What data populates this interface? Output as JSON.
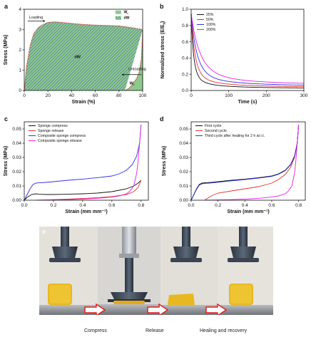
{
  "chart_data": [
    {
      "panel": "a",
      "type": "area",
      "xlabel": "Strain (%)",
      "ylabel": "Stress (MPa)",
      "xlim": [
        0,
        100
      ],
      "ylim": [
        0,
        4
      ],
      "xticks": [
        "0",
        "20",
        "40",
        "60",
        "80",
        "100"
      ],
      "yticks": [
        "0",
        "1",
        "2",
        "3",
        "4"
      ],
      "legend": [
        {
          "name": "W_r",
          "label": "W",
          "sub": "r",
          "color": "#8cc98c"
        },
        {
          "name": "dW",
          "label": "dW",
          "color": "#3a5ba8"
        }
      ],
      "annotations": {
        "loading": "Loading",
        "unloading": "Unloading",
        "dw_label": "dW",
        "wr_label": "W",
        "wr_sub": "r"
      },
      "series": [
        {
          "name": "loading",
          "x": [
            0,
            2,
            5,
            8,
            12,
            16,
            20,
            25,
            30,
            40,
            50,
            60,
            70,
            80,
            90,
            100
          ],
          "y": [
            0,
            1.2,
            2.2,
            2.8,
            3.1,
            3.25,
            3.35,
            3.38,
            3.36,
            3.3,
            3.25,
            3.22,
            3.2,
            3.18,
            3.1,
            3.0
          ]
        },
        {
          "name": "unloading",
          "x": [
            100,
            99,
            97,
            95,
            92,
            90,
            88,
            86,
            85
          ],
          "y": [
            3.0,
            1.6,
            0.9,
            0.6,
            0.35,
            0.2,
            0.1,
            0.03,
            0
          ]
        }
      ]
    },
    {
      "panel": "b",
      "type": "line",
      "xlabel": "Time (s)",
      "ylabel": "Normalized stress (E/E",
      "ylabel_sub": "0",
      "ylabel_end": ")",
      "xlim": [
        0,
        300
      ],
      "ylim": [
        0,
        1
      ],
      "xticks": [
        "0",
        "100",
        "200",
        "300"
      ],
      "yticks": [
        "0.0",
        "0.2",
        "0.4",
        "0.6",
        "0.8",
        "1.0"
      ],
      "series": [
        {
          "name": "25%",
          "color": "#111111",
          "a": 0.02,
          "b": 0.98,
          "tau": 7
        },
        {
          "name": "50%",
          "color": "#e0342c",
          "a": 0.03,
          "b": 0.97,
          "tau": 11
        },
        {
          "name": "100%",
          "color": "#2d2ee0",
          "a": 0.04,
          "b": 0.96,
          "tau": 17
        },
        {
          "name": "200%",
          "color": "#e020e0",
          "a": 0.05,
          "b": 0.95,
          "tau": 26
        }
      ]
    },
    {
      "panel": "c",
      "type": "line",
      "xlabel": "Strain (mm mm⁻¹)",
      "ylabel": "Stress (MPa)",
      "xlim": [
        0,
        0.85
      ],
      "ylim": [
        0,
        0.055
      ],
      "xticks": [
        "0.0",
        "0.2",
        "0.4",
        "0.6",
        "0.8"
      ],
      "yticks": [
        "0.00",
        "0.01",
        "0.02",
        "0.03",
        "0.04",
        "0.05"
      ],
      "series": [
        {
          "name": "Sponge compress",
          "color": "#111111",
          "x": [
            0,
            0.02,
            0.05,
            0.08,
            0.1,
            0.15,
            0.2,
            0.3,
            0.4,
            0.5,
            0.6,
            0.65,
            0.7,
            0.75,
            0.78,
            0.8
          ],
          "y": [
            0,
            0.002,
            0.004,
            0.0045,
            0.0042,
            0.004,
            0.004,
            0.0042,
            0.0045,
            0.005,
            0.006,
            0.007,
            0.008,
            0.01,
            0.012,
            0.014
          ]
        },
        {
          "name": "Sponge release",
          "color": "#e0342c",
          "x": [
            0.8,
            0.78,
            0.75,
            0.7,
            0.6,
            0.5,
            0.4,
            0.3,
            0.2,
            0.15,
            0.1,
            0.08
          ],
          "y": [
            0.014,
            0.009,
            0.006,
            0.004,
            0.0025,
            0.0018,
            0.0012,
            0.0008,
            0.0004,
            0.0002,
            0.0001,
            0
          ]
        },
        {
          "name": "Composite sponge compress",
          "color": "#2d2ee0",
          "x": [
            0,
            0.02,
            0.04,
            0.06,
            0.08,
            0.1,
            0.15,
            0.2,
            0.3,
            0.4,
            0.5,
            0.6,
            0.65,
            0.7,
            0.74,
            0.77,
            0.79,
            0.8
          ],
          "y": [
            0,
            0.004,
            0.008,
            0.011,
            0.012,
            0.0122,
            0.0125,
            0.013,
            0.014,
            0.0148,
            0.0158,
            0.017,
            0.0185,
            0.021,
            0.025,
            0.031,
            0.04,
            0.053
          ]
        },
        {
          "name": "Composite sponge release",
          "color": "#e020e0",
          "x": [
            0.8,
            0.79,
            0.78,
            0.77,
            0.75,
            0.72,
            0.7,
            0.65,
            0.6,
            0.5,
            0.4,
            0.3,
            0.2,
            0.15,
            0.1
          ],
          "y": [
            0.053,
            0.04,
            0.028,
            0.019,
            0.01,
            0.006,
            0.0045,
            0.003,
            0.0022,
            0.0013,
            0.0008,
            0.0004,
            0.0002,
            0.0001,
            0
          ]
        }
      ]
    },
    {
      "panel": "d",
      "type": "line",
      "xlabel": "Strain (mm mm⁻¹)",
      "ylabel": "Stress (MPa)",
      "xlim": [
        0,
        0.85
      ],
      "ylim": [
        0,
        0.055
      ],
      "xticks": [
        "0.0",
        "0.2",
        "0.4",
        "0.6",
        "0.8"
      ],
      "yticks": [
        "0.00",
        "0.01",
        "0.02",
        "0.03",
        "0.04",
        "0.05"
      ],
      "series": [
        {
          "name": "First cycle",
          "color": "#111111",
          "x": [
            0,
            0.02,
            0.04,
            0.06,
            0.08,
            0.1,
            0.15,
            0.2,
            0.3,
            0.4,
            0.5,
            0.6,
            0.65,
            0.7,
            0.74,
            0.77,
            0.79,
            0.8
          ],
          "y": [
            0,
            0.004,
            0.008,
            0.011,
            0.012,
            0.0122,
            0.0125,
            0.013,
            0.014,
            0.0148,
            0.0158,
            0.017,
            0.0185,
            0.021,
            0.025,
            0.031,
            0.04,
            0.053
          ]
        },
        {
          "name": "Second cycle",
          "color": "#e0342c",
          "x": [
            0.1,
            0.15,
            0.2,
            0.3,
            0.4,
            0.5,
            0.6,
            0.65,
            0.7,
            0.74,
            0.77,
            0.79,
            0.8
          ],
          "y": [
            0,
            0.003,
            0.005,
            0.0065,
            0.008,
            0.0095,
            0.012,
            0.0145,
            0.018,
            0.023,
            0.03,
            0.04,
            0.052
          ]
        },
        {
          "name": "Third cycle after healing for 2 h at r.t.",
          "color": "#2d2ee0",
          "x": [
            0,
            0.02,
            0.04,
            0.06,
            0.08,
            0.1,
            0.15,
            0.2,
            0.3,
            0.4,
            0.5,
            0.6,
            0.65,
            0.7,
            0.74,
            0.77,
            0.79,
            0.8
          ],
          "y": [
            0,
            0.0038,
            0.0076,
            0.0105,
            0.0115,
            0.0118,
            0.0121,
            0.0126,
            0.0136,
            0.0145,
            0.0155,
            0.0167,
            0.0182,
            0.0207,
            0.0247,
            0.0307,
            0.0397,
            0.0525
          ]
        },
        {
          "name": "release",
          "legend": false,
          "color": "#e020e0",
          "x": [
            0.8,
            0.79,
            0.78,
            0.77,
            0.75,
            0.72,
            0.7,
            0.65,
            0.6,
            0.5,
            0.4,
            0.3,
            0.2,
            0.15,
            0.1
          ],
          "y": [
            0.053,
            0.04,
            0.028,
            0.019,
            0.01,
            0.006,
            0.0045,
            0.003,
            0.0022,
            0.0013,
            0.0008,
            0.0004,
            0.0002,
            0.0001,
            0
          ]
        }
      ]
    }
  ],
  "photo_panel": {
    "letter": "e",
    "captions": [
      "Compress",
      "Release",
      "Healing and recovery"
    ]
  }
}
